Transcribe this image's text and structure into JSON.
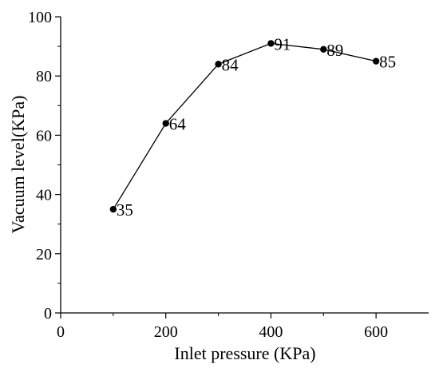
{
  "chart_data": {
    "type": "line",
    "title": "",
    "xlabel": "Inlet pressure (KPa)",
    "ylabel": "Vacuum level(KPa)",
    "xlim": [
      0,
      700
    ],
    "ylim": [
      0,
      100
    ],
    "x_ticks": [
      0,
      200,
      400,
      600
    ],
    "y_ticks": [
      0,
      20,
      40,
      60,
      80,
      100
    ],
    "grid": false,
    "legend": "none",
    "series": [
      {
        "x": [
          100,
          200,
          300,
          400,
          500,
          600
        ],
        "y": [
          35,
          64,
          84,
          91,
          89,
          85
        ],
        "data_labels": [
          "35",
          "64",
          "84",
          "91",
          "89",
          "85"
        ],
        "color": "#000000",
        "marker": "circle"
      }
    ]
  }
}
